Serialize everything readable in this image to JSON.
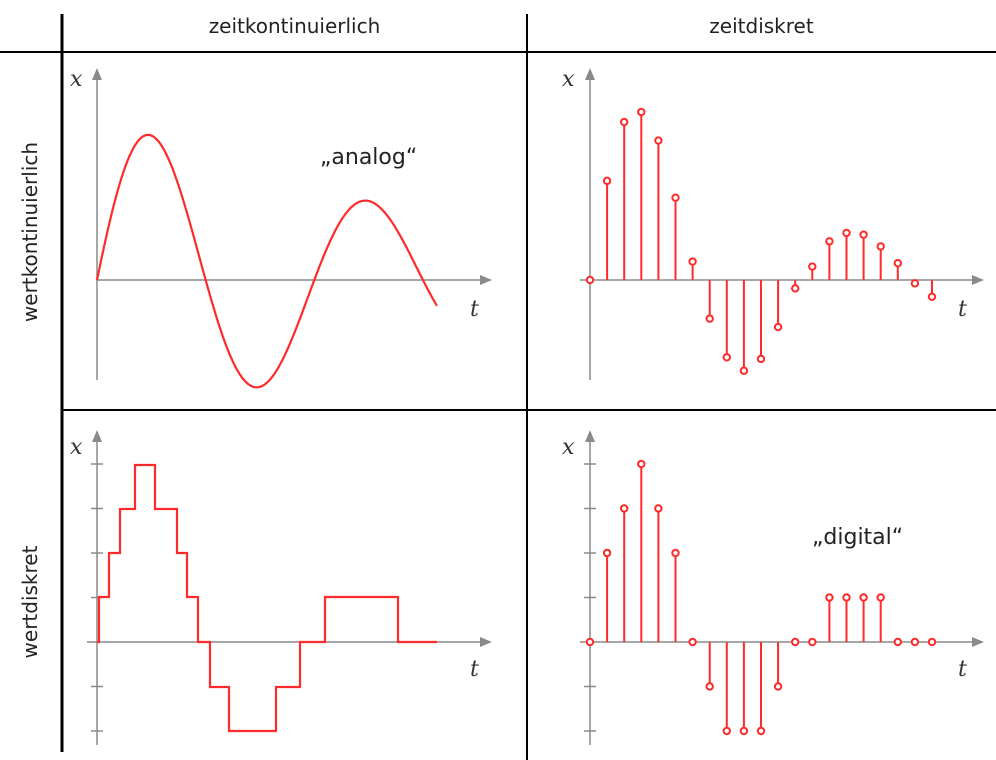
{
  "columns": [
    "zeitkontinuierlich",
    "zeitdiskret"
  ],
  "rows": [
    "wertkontinuierlich",
    "wertdiskret"
  ],
  "axis": {
    "x_symbol": "x",
    "t_symbol": "t"
  },
  "annotations": {
    "analog": "„analog“",
    "digital": "„digital“"
  },
  "colors": {
    "signal": "#ff2a2a",
    "axis": "#8a8a8a",
    "grid": "#000000"
  },
  "signals": {
    "continuous": {
      "amplitudes": [
        0.0,
        1.0,
        -0.54,
        0.28,
        -0.09
      ],
      "description_points": 5
    },
    "discrete_samples": [
      0,
      0.59,
      0.94,
      1.0,
      0.83,
      0.49,
      0.11,
      -0.23,
      -0.46,
      -0.54,
      -0.47,
      -0.28,
      -0.05,
      0.08,
      0.23,
      0.28,
      0.27,
      0.2,
      0.1,
      -0.02,
      -0.1
    ],
    "quantized_steps": [
      0,
      1,
      2,
      3,
      4,
      3,
      2,
      1,
      0,
      -1,
      -2,
      -2,
      -1,
      0,
      1,
      1,
      1,
      0,
      0
    ],
    "digital_samples": [
      0,
      2,
      3,
      4,
      3,
      2,
      0,
      -1,
      -2,
      -2,
      -2,
      -1,
      0,
      0,
      1,
      1,
      1,
      1,
      0,
      0,
      0
    ]
  }
}
